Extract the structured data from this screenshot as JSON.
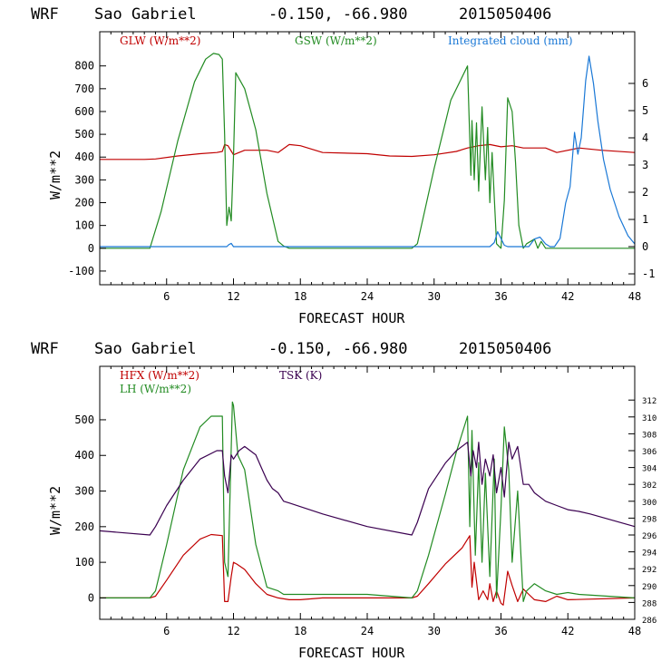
{
  "colors": {
    "red": "#c00000",
    "green": "#228b22",
    "blue": "#1a78d6",
    "purple": "#3a0050",
    "axis": "#000000"
  },
  "top": {
    "header": {
      "model": "WRF",
      "station": "Sao Gabriel",
      "coords": "-0.150, -66.980",
      "date": "2015050406"
    },
    "xlabel": "FORECAST HOUR",
    "ylabel": "W/m**2",
    "legend": {
      "glw": "GLW (W/m**2)",
      "gsw": "GSW (W/m**2)",
      "cloud": "Integrated cloud (mm)"
    }
  },
  "bottom": {
    "header": {
      "model": "WRF",
      "station": "Sao Gabriel",
      "coords": "-0.150, -66.980",
      "date": "2015050406"
    },
    "xlabel": "FORECAST HOUR",
    "ylabel": "W/m**2",
    "legend": {
      "hfx": "HFX (W/m**2)",
      "lh": "LH (W/m**2)",
      "tsk": "TSK (K)"
    }
  },
  "chart_data": [
    {
      "type": "line",
      "title": "WRF Sao Gabriel -0.150, -66.980 2015050406",
      "xlabel": "FORECAST HOUR",
      "ylabel": "W/m**2",
      "xlim": [
        0,
        48
      ],
      "ylim": [
        -160,
        950
      ],
      "y2lim": [
        -1.4,
        7.9
      ],
      "xticks": [
        "6",
        "12",
        "18",
        "24",
        "30",
        "36",
        "42",
        "48"
      ],
      "yticks": [
        "-100",
        "0",
        "100",
        "200",
        "300",
        "400",
        "500",
        "600",
        "700",
        "800"
      ],
      "y2ticks": [
        "-1",
        "0",
        "1",
        "2",
        "3",
        "4",
        "5",
        "6"
      ],
      "series": [
        {
          "name": "GLW (W/m**2)",
          "color": "red",
          "axis": "left",
          "x": [
            0,
            4,
            5,
            7,
            9,
            10.5,
            11,
            11.2,
            11.5,
            12,
            13,
            15,
            16,
            17,
            18,
            20,
            24,
            26,
            28,
            30,
            32,
            33,
            34,
            35,
            36,
            37,
            38,
            40,
            41,
            43,
            45,
            48
          ],
          "y": [
            390,
            390,
            392,
            405,
            415,
            420,
            425,
            455,
            450,
            410,
            430,
            430,
            420,
            455,
            450,
            420,
            415,
            405,
            403,
            410,
            425,
            440,
            450,
            455,
            445,
            450,
            440,
            440,
            420,
            440,
            430,
            420
          ]
        },
        {
          "name": "GSW (W/m**2)",
          "color": "green",
          "axis": "left",
          "x": [
            0,
            4.5,
            5.5,
            7,
            8.5,
            9.5,
            10.2,
            10.7,
            11,
            11.2,
            11.4,
            11.6,
            11.8,
            12,
            12.2,
            13,
            14,
            15,
            16,
            16.5,
            17,
            28,
            28.5,
            30,
            31.5,
            33,
            33.3,
            33.4,
            33.6,
            33.8,
            34,
            34.3,
            34.6,
            34.8,
            35,
            35.2,
            35.6,
            36,
            36.3,
            36.6,
            37,
            37.3,
            37.6,
            38,
            38.3,
            39,
            39.3,
            39.6,
            40,
            41,
            48
          ],
          "y": [
            0,
            0,
            160,
            470,
            730,
            830,
            855,
            850,
            830,
            500,
            100,
            180,
            120,
            400,
            770,
            700,
            520,
            240,
            30,
            10,
            0,
            0,
            20,
            350,
            650,
            800,
            320,
            560,
            300,
            550,
            250,
            620,
            300,
            530,
            200,
            420,
            20,
            0,
            210,
            660,
            600,
            380,
            100,
            0,
            20,
            40,
            0,
            30,
            0,
            0,
            0
          ]
        },
        {
          "name": "Integrated cloud (mm)",
          "color": "blue",
          "axis": "right",
          "x": [
            0,
            11.4,
            11.6,
            11.8,
            12,
            35,
            35.4,
            35.7,
            36,
            36.3,
            36.6,
            38.5,
            39,
            39.5,
            40,
            40.4,
            40.8,
            41.3,
            41.8,
            42.2,
            42.6,
            42.9,
            43.2,
            43.6,
            43.9,
            44.3,
            44.7,
            45.2,
            45.8,
            46.6,
            47.4,
            48
          ],
          "y": [
            0,
            0,
            0.08,
            0.12,
            0,
            0,
            0.15,
            0.55,
            0.3,
            0.05,
            0,
            0,
            0.28,
            0.35,
            0.1,
            0,
            0,
            0.3,
            1.6,
            2.2,
            4.2,
            3.4,
            4.0,
            6.1,
            7.0,
            6.0,
            4.6,
            3.2,
            2.1,
            1.1,
            0.4,
            0.1
          ]
        }
      ]
    },
    {
      "type": "line",
      "title": "WRF Sao Gabriel -0.150, -66.980 2015050406",
      "xlabel": "FORECAST HOUR",
      "ylabel": "W/m**2",
      "xlim": [
        0,
        48
      ],
      "ylim": [
        -60,
        650
      ],
      "y2lim": [
        286,
        316
      ],
      "xticks": [
        "6",
        "12",
        "18",
        "24",
        "30",
        "36",
        "42",
        "48"
      ],
      "yticks": [
        "0",
        "100",
        "200",
        "300",
        "400",
        "500"
      ],
      "y2ticks": [
        "286",
        "288",
        "290",
        "292",
        "294",
        "296",
        "298",
        "300",
        "302",
        "304",
        "306",
        "308",
        "310",
        "312"
      ],
      "series": [
        {
          "name": "HFX (W/m**2)",
          "color": "red",
          "axis": "left",
          "x": [
            0,
            4.5,
            5,
            6,
            7.5,
            9,
            10,
            11,
            11.2,
            11.5,
            11.8,
            12,
            12.3,
            13,
            14,
            15,
            16,
            17,
            18,
            20,
            24,
            28,
            28.5,
            29.5,
            31,
            32.5,
            33.2,
            33.4,
            33.6,
            34,
            34.4,
            34.8,
            35,
            35.3,
            35.6,
            36,
            36.2,
            36.6,
            37,
            37.5,
            38,
            38.5,
            39,
            40,
            41,
            42,
            48
          ],
          "y": [
            0,
            0,
            5,
            50,
            120,
            165,
            178,
            175,
            -10,
            -10,
            60,
            100,
            95,
            80,
            40,
            10,
            0,
            -5,
            -5,
            0,
            0,
            0,
            5,
            40,
            95,
            140,
            175,
            30,
            100,
            -5,
            20,
            -5,
            40,
            -10,
            20,
            -15,
            -20,
            75,
            35,
            -10,
            25,
            10,
            -5,
            -10,
            5,
            -5,
            0
          ]
        },
        {
          "name": "LH (W/m**2)",
          "color": "green",
          "axis": "left",
          "x": [
            0,
            4.5,
            5,
            6,
            7.5,
            9,
            10,
            11,
            11.2,
            11.5,
            11.7,
            11.9,
            12,
            12.4,
            13,
            14,
            15,
            16,
            16.5,
            17,
            24,
            28,
            28.5,
            29.5,
            31,
            32,
            33,
            33.2,
            33.4,
            33.7,
            34,
            34.3,
            34.6,
            35,
            35.4,
            35.6,
            36,
            36.3,
            36.7,
            37,
            37.5,
            38,
            38.3,
            39,
            40,
            41,
            42,
            43,
            48
          ],
          "y": [
            0,
            0,
            20,
            150,
            360,
            480,
            510,
            510,
            100,
            60,
            300,
            550,
            540,
            400,
            360,
            150,
            30,
            20,
            10,
            10,
            10,
            0,
            20,
            120,
            290,
            410,
            510,
            200,
            470,
            120,
            380,
            100,
            350,
            60,
            390,
            0,
            250,
            480,
            360,
            100,
            300,
            -10,
            20,
            40,
            20,
            10,
            15,
            10,
            0
          ]
        },
        {
          "name": "TSK (K)",
          "color": "purple",
          "axis": "right",
          "x": [
            0,
            4.5,
            5,
            6,
            7.5,
            9,
            10.5,
            11,
            11.2,
            11.5,
            11.8,
            12,
            12.5,
            13,
            14,
            14.5,
            15,
            15.5,
            16,
            16.5,
            17,
            20,
            24,
            28,
            28.5,
            29.5,
            31,
            32,
            33,
            33.3,
            33.5,
            33.8,
            34,
            34.3,
            34.6,
            35,
            35.3,
            35.6,
            36,
            36.3,
            36.7,
            37,
            37.5,
            38,
            38.5,
            39,
            40,
            41,
            42,
            43,
            44,
            48
          ],
          "y": [
            296.5,
            296,
            297,
            299.5,
            302.5,
            305,
            306,
            306,
            303,
            301,
            305.5,
            305,
            306,
            306.5,
            305.5,
            304,
            302.5,
            301.5,
            301,
            300,
            299.8,
            298.5,
            297,
            296,
            297.5,
            301.5,
            304.5,
            306,
            307,
            303,
            306,
            304,
            307,
            302,
            305,
            303,
            305.5,
            301,
            304,
            300.5,
            307,
            305,
            306.5,
            302,
            302,
            301,
            300,
            299.5,
            299,
            298.8,
            298.5,
            297
          ]
        }
      ]
    }
  ]
}
